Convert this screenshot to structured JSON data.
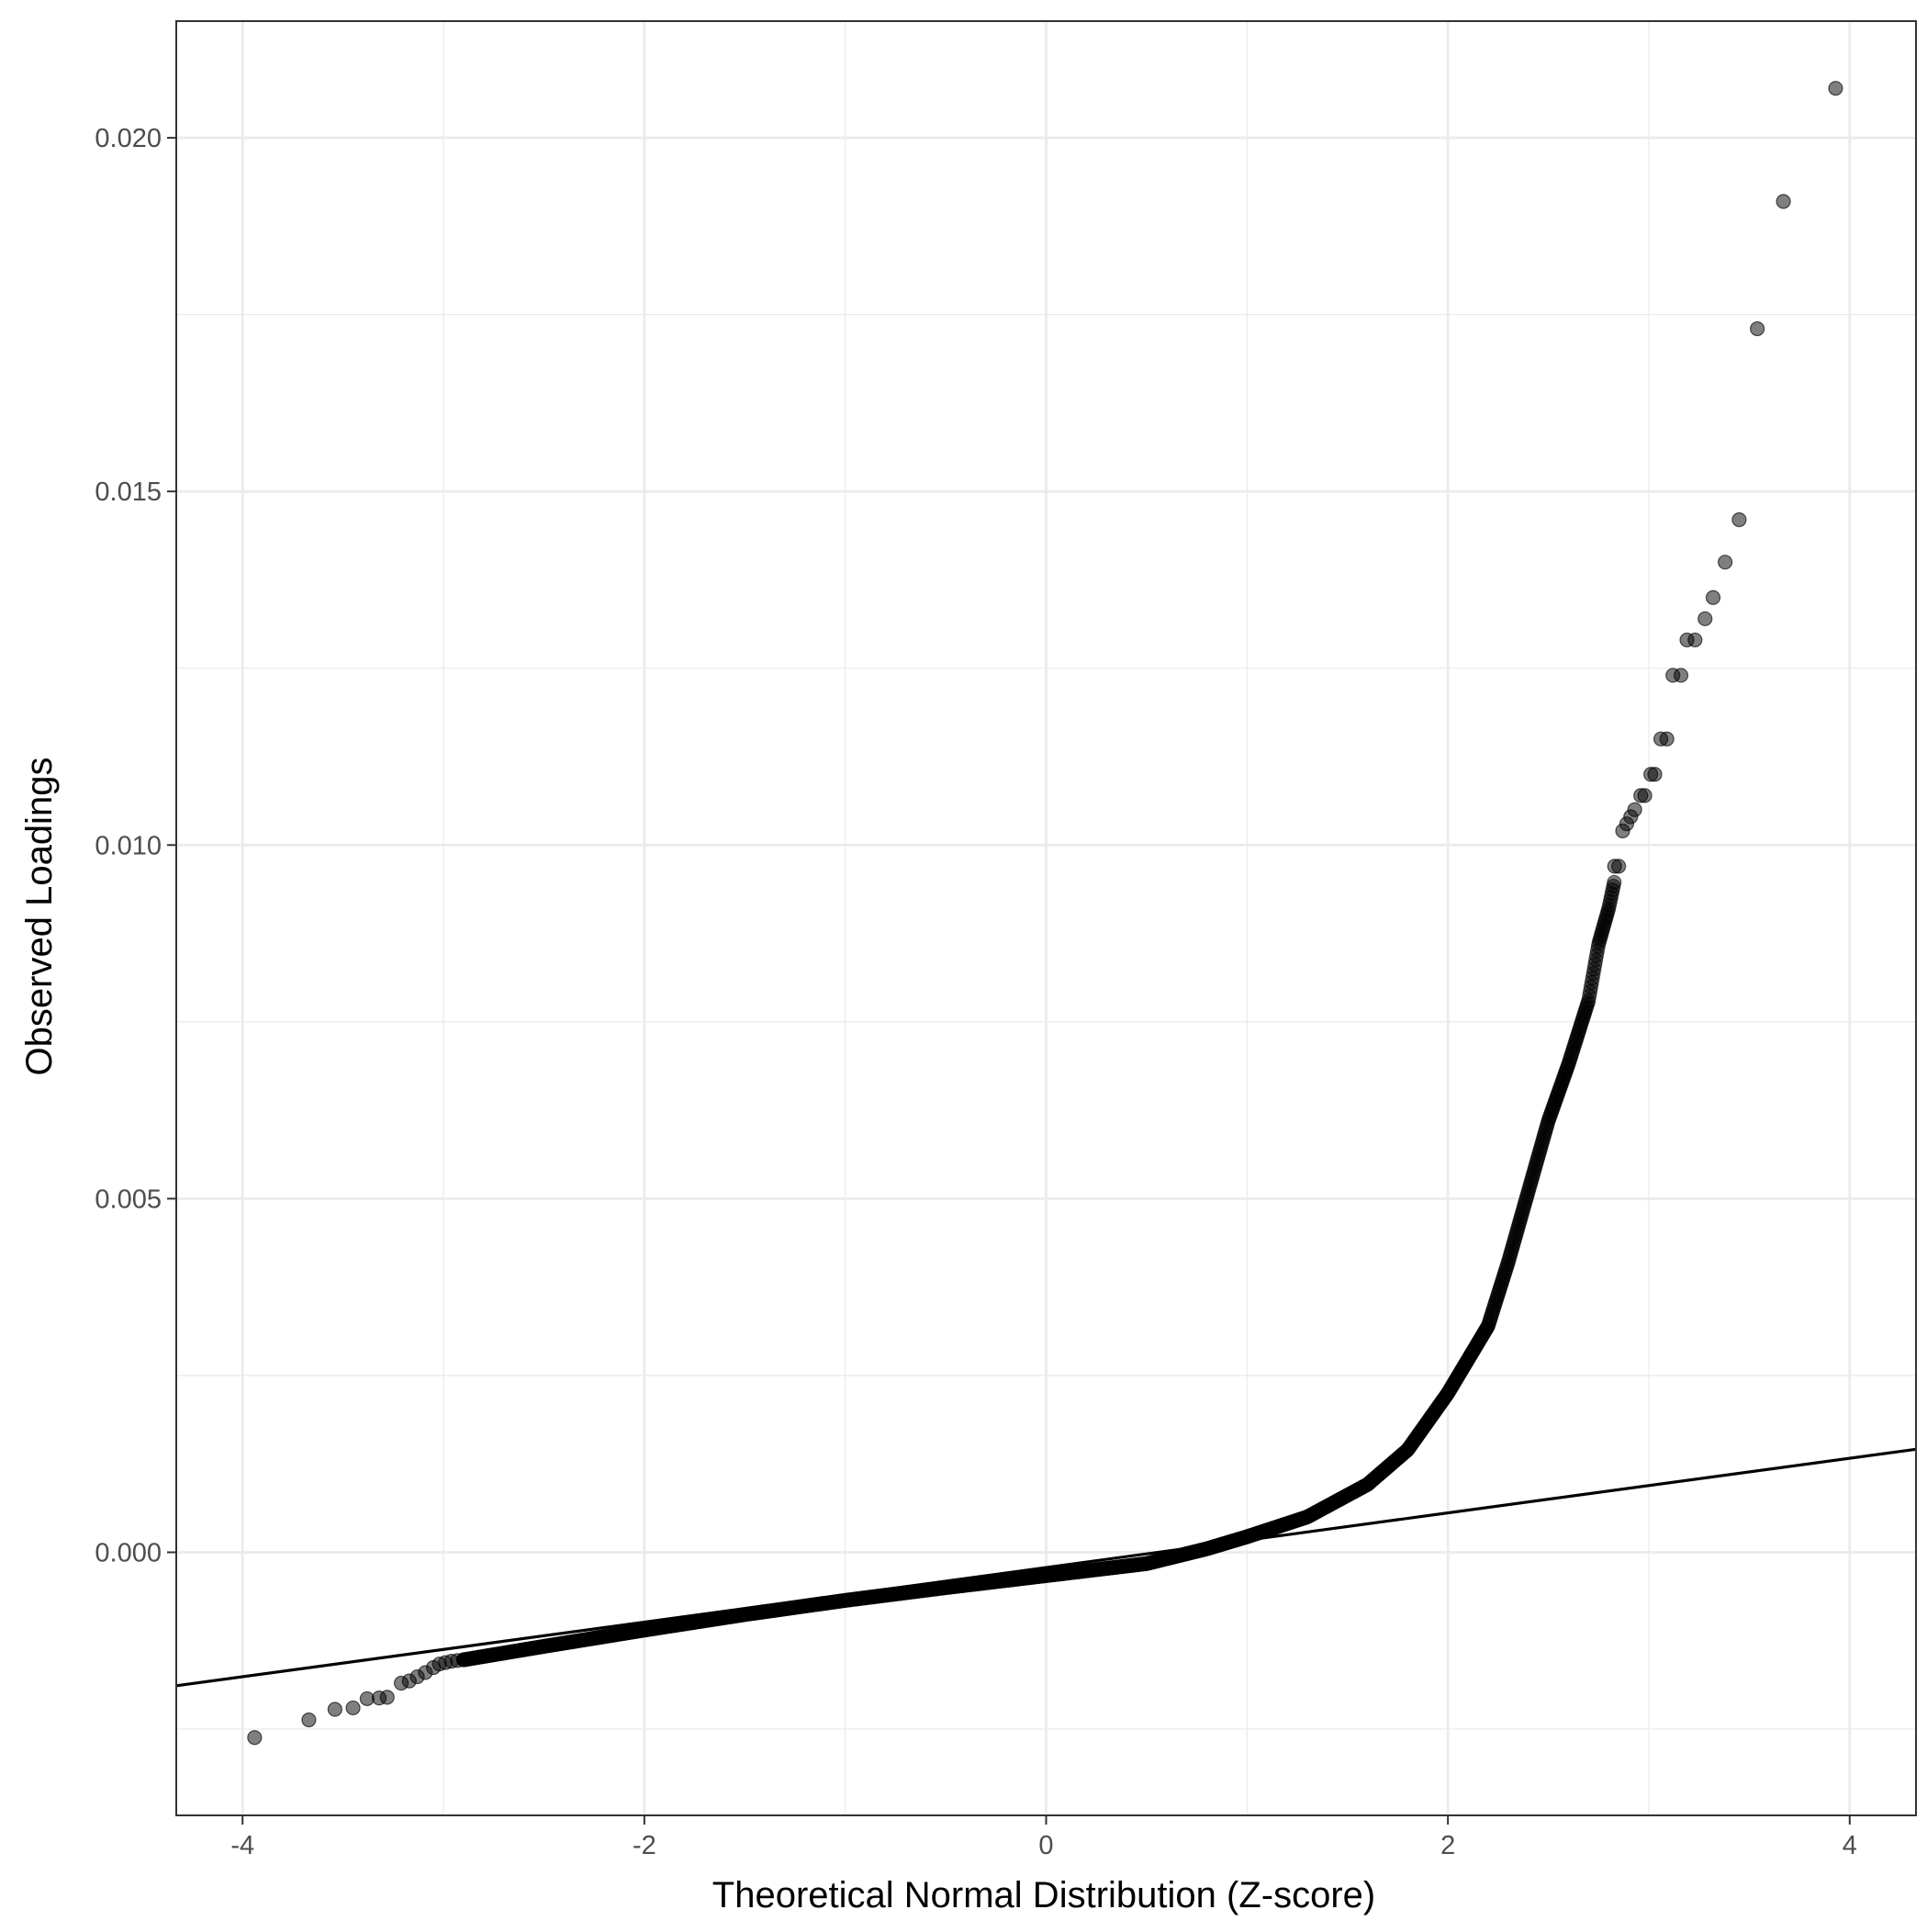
{
  "chart_data": {
    "type": "scatter",
    "title": "",
    "xlabel": "Theoretical Normal Distribution (Z-score)",
    "ylabel": "Observed Loadings",
    "xlim": [
      -4.33,
      4.33
    ],
    "ylim": [
      -0.00372,
      0.02165
    ],
    "x_ticks": [
      -4,
      -2,
      0,
      2,
      4
    ],
    "x_tick_labels": [
      "-4",
      "-2",
      "0",
      "2",
      "4"
    ],
    "y_ticks": [
      0.0,
      0.005,
      0.01,
      0.015,
      0.02
    ],
    "y_tick_labels": [
      "0.000",
      "0.005",
      "0.010",
      "0.015",
      "0.020"
    ],
    "x_minor_ticks": [
      -3,
      -1,
      1,
      3
    ],
    "y_minor_ticks": [
      -0.0025,
      0.0025,
      0.0075,
      0.0125,
      0.0175
    ],
    "grid": true,
    "theme": "bw",
    "point_color": "#000000",
    "point_alpha": 0.5,
    "line_color": "#000000",
    "reference_line": {
      "intercept": -0.000215,
      "slope": 0.000386
    },
    "points": [
      [
        -3.94,
        -0.00262
      ],
      [
        -3.67,
        -0.00237
      ],
      [
        -3.54,
        -0.00222
      ],
      [
        -3.45,
        -0.0022
      ],
      [
        -3.38,
        -0.00207
      ],
      [
        -3.32,
        -0.00206
      ],
      [
        -3.28,
        -0.00205
      ],
      [
        -3.21,
        -0.00185
      ],
      [
        -3.17,
        -0.00182
      ],
      [
        -3.13,
        -0.00176
      ],
      [
        -3.09,
        -0.0017
      ],
      [
        -3.05,
        -0.00163
      ],
      [
        -3.02,
        -0.00158
      ],
      [
        -2.99,
        -0.00156
      ],
      [
        -2.96,
        -0.00154
      ],
      [
        -2.93,
        -0.00153
      ],
      [
        -2.9,
        -0.00152
      ],
      [
        3.93,
        0.0207
      ],
      [
        3.67,
        0.0191
      ],
      [
        3.54,
        0.0173
      ],
      [
        3.45,
        0.0146
      ],
      [
        3.38,
        0.014
      ],
      [
        3.32,
        0.0135
      ],
      [
        3.28,
        0.0132
      ],
      [
        3.23,
        0.0129
      ],
      [
        3.19,
        0.0129
      ],
      [
        3.16,
        0.0124
      ],
      [
        3.12,
        0.0124
      ],
      [
        3.09,
        0.0115
      ],
      [
        3.06,
        0.0115
      ],
      [
        3.03,
        0.011
      ],
      [
        3.01,
        0.011
      ],
      [
        2.98,
        0.0107
      ],
      [
        2.96,
        0.0107
      ],
      [
        2.93,
        0.0105
      ],
      [
        2.91,
        0.0104
      ],
      [
        2.89,
        0.0103
      ],
      [
        2.87,
        0.0102
      ],
      [
        2.85,
        0.0097
      ],
      [
        2.83,
        0.0097
      ]
    ]
  }
}
